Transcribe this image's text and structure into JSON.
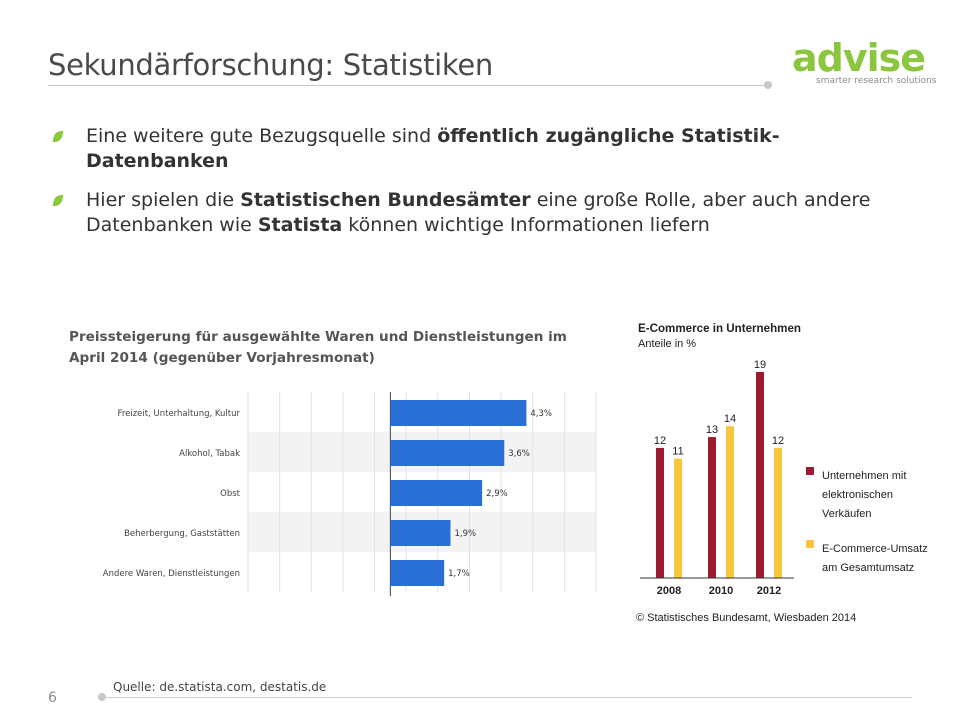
{
  "slide": {
    "title": "Sekundärforschung: Statistiken",
    "page_number": "6",
    "source_note": "Quelle: de.statista.com, destatis.de"
  },
  "logo": {
    "word": "advise",
    "tagline": "smarter research solutions",
    "color": "#8cc63f"
  },
  "bullets": [
    {
      "parts": [
        {
          "text": "Eine weitere gute Bezugsquelle sind ",
          "bold": false
        },
        {
          "text": "öffentlich zugängliche Statistik-Datenbanken",
          "bold": true
        }
      ]
    },
    {
      "parts": [
        {
          "text": "Hier spielen die ",
          "bold": false
        },
        {
          "text": "Statistischen Bundesämter",
          "bold": true
        },
        {
          "text": " eine große Rolle, aber auch andere Datenbanken wie ",
          "bold": false
        },
        {
          "text": "Statista",
          "bold": true
        },
        {
          "text": " können wichtige Informationen liefern",
          "bold": false
        }
      ]
    }
  ],
  "chart_data": [
    {
      "type": "bar",
      "orientation": "horizontal",
      "title": "Preissteigerung für ausgewählte Waren und Dienstleistungen im April 2014 (gegenüber Vorjahresmonat)",
      "categories": [
        "Freizeit, Unterhaltung, Kultur",
        "Alkohol, Tabak",
        "Obst",
        "Beherbergung, Gaststätten",
        "Andere Waren, Dienstleistungen"
      ],
      "values": [
        4.3,
        3.6,
        2.9,
        1.9,
        1.7
      ],
      "value_labels": [
        "4,3%",
        "3,6%",
        "2,9%",
        "1,9%",
        "1,7%"
      ],
      "xlim": [
        -4.5,
        6.5
      ],
      "grid": true,
      "bar_color": "#2a6fd6"
    },
    {
      "type": "bar",
      "title": "E-Commerce in Unternehmen",
      "subtitle": "Anteile in %",
      "categories": [
        "2008",
        "2010",
        "2012"
      ],
      "series": [
        {
          "name": "Unternehmen mit elektronischen Verkäufen",
          "values": [
            12,
            13,
            19
          ],
          "labels": [
            "12",
            "13",
            "19"
          ],
          "color": "#9b1b30"
        },
        {
          "name": "E-Commerce-Umsatz am Gesamtumsatz",
          "values": [
            11,
            14,
            12
          ],
          "labels": [
            "11",
            "14",
            "12"
          ],
          "color": "#f7c63c"
        }
      ],
      "ylim": [
        0,
        19
      ],
      "legend": "right",
      "source": "© Statistisches Bundesamt, Wiesbaden 2014"
    }
  ]
}
